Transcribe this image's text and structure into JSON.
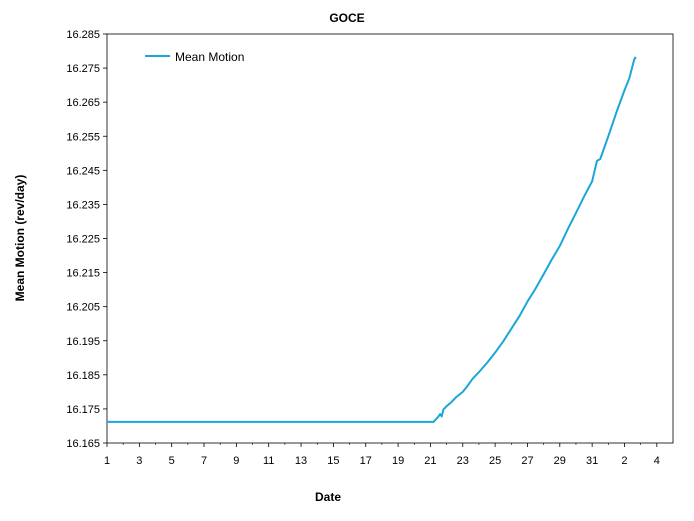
{
  "chart_data": {
    "type": "line",
    "title": "GOCE",
    "xlabel": "Date",
    "ylabel": "Mean Motion (rev/day)",
    "x_tick_labels": [
      "1",
      "3",
      "5",
      "7",
      "9",
      "11",
      "13",
      "15",
      "17",
      "19",
      "21",
      "23",
      "25",
      "27",
      "29",
      "31",
      "2",
      "4"
    ],
    "x_tick_days": [
      1,
      3,
      5,
      7,
      9,
      11,
      13,
      15,
      17,
      19,
      21,
      23,
      25,
      27,
      29,
      31,
      33,
      35
    ],
    "xlim": [
      1,
      36
    ],
    "ylim": [
      16.165,
      16.285
    ],
    "y_ticks": [
      16.165,
      16.175,
      16.185,
      16.195,
      16.205,
      16.215,
      16.225,
      16.235,
      16.245,
      16.255,
      16.265,
      16.275,
      16.285
    ],
    "y_tick_labels": [
      "16.165",
      "16.175",
      "16.185",
      "16.195",
      "16.205",
      "16.215",
      "16.225",
      "16.235",
      "16.245",
      "16.255",
      "16.265",
      "16.275",
      "16.285"
    ],
    "grid": false,
    "legend_position": "top-left",
    "series": [
      {
        "name": "Mean Motion",
        "color": "#1aa6d9",
        "points": [
          [
            1.0,
            16.1712
          ],
          [
            5.0,
            16.1712
          ],
          [
            10.0,
            16.1712
          ],
          [
            15.0,
            16.1712
          ],
          [
            20.0,
            16.1712
          ],
          [
            21.2,
            16.1712
          ],
          [
            21.5,
            16.1728
          ],
          [
            21.6,
            16.1735
          ],
          [
            21.7,
            16.1728
          ],
          [
            21.8,
            16.1748
          ],
          [
            22.0,
            16.1758
          ],
          [
            22.3,
            16.177
          ],
          [
            22.6,
            16.1785
          ],
          [
            23.0,
            16.18
          ],
          [
            23.3,
            16.1818
          ],
          [
            23.6,
            16.1838
          ],
          [
            24.0,
            16.1858
          ],
          [
            24.5,
            16.1885
          ],
          [
            25.0,
            16.1915
          ],
          [
            25.5,
            16.1948
          ],
          [
            26.0,
            16.1985
          ],
          [
            26.5,
            16.2022
          ],
          [
            27.0,
            16.2065
          ],
          [
            27.5,
            16.2103
          ],
          [
            28.0,
            16.2145
          ],
          [
            28.5,
            16.2188
          ],
          [
            29.0,
            16.2228
          ],
          [
            29.5,
            16.2278
          ],
          [
            30.0,
            16.2325
          ],
          [
            30.5,
            16.2373
          ],
          [
            31.0,
            16.2418
          ],
          [
            31.3,
            16.2478
          ],
          [
            31.5,
            16.2483
          ],
          [
            32.0,
            16.255
          ],
          [
            32.5,
            16.262
          ],
          [
            33.0,
            16.2685
          ],
          [
            33.3,
            16.272
          ],
          [
            33.6,
            16.2775
          ],
          [
            33.7,
            16.2783
          ]
        ]
      }
    ]
  }
}
